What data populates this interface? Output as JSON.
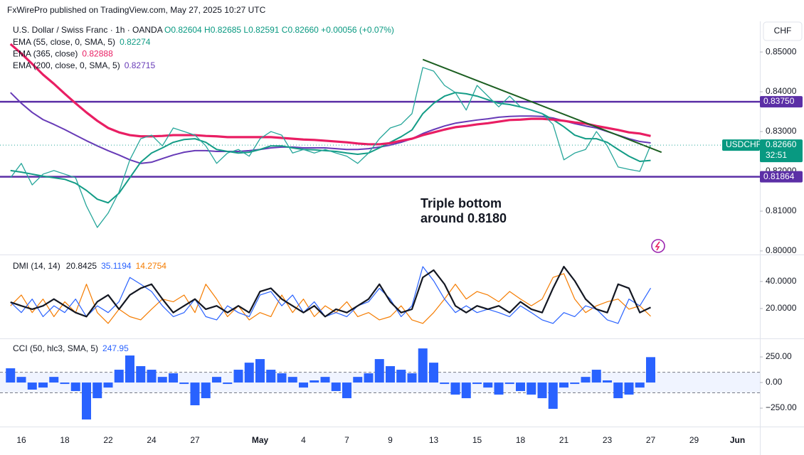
{
  "header": "FxWirePro published on TradingView.com, May 27, 2025 10:27 UTC",
  "currency_button": "CHF",
  "symbol": "U.S. Dollar / Swiss Franc · 1h · OANDA",
  "quote": "O0.82604 H0.82685 L0.82591 C0.82660 +0.00056 (+0.07%)",
  "last_price": {
    "symbol": "USDCHF",
    "price": "0.82660",
    "countdown": "32:51"
  },
  "annotation": [
    "Triple bottom",
    "around 0.8180"
  ],
  "chart_data": [
    {
      "type": "line",
      "categories": [
        null,
        "16",
        null,
        null,
        null,
        "18",
        null,
        null,
        null,
        "22",
        null,
        null,
        null,
        "24",
        null,
        null,
        null,
        "27",
        null,
        null,
        null,
        null,
        null,
        "May",
        null,
        null,
        null,
        "4",
        null,
        null,
        null,
        "7",
        null,
        null,
        null,
        "9",
        null,
        null,
        null,
        "13",
        null,
        null,
        null,
        "15",
        null,
        null,
        null,
        "18",
        null,
        null,
        null,
        "21",
        null,
        null,
        null,
        "23",
        null,
        null,
        null,
        "27",
        null,
        null,
        null,
        "29",
        null,
        null,
        null,
        "Jun"
      ],
      "ylim": [
        0.7991,
        0.8577
      ],
      "yticks": [
        {
          "value": 0.8,
          "label": "0.80000"
        },
        {
          "value": 0.81,
          "label": "0.81000"
        },
        {
          "value": 0.82,
          "label": "0.82000"
        },
        {
          "value": 0.83,
          "label": "0.83000"
        },
        {
          "value": 0.84,
          "label": "0.84000"
        },
        {
          "value": 0.85,
          "label": "0.85000"
        }
      ],
      "levels": [
        {
          "value": 0.8375,
          "label": "0.83750"
        },
        {
          "value": 0.81864,
          "label": "0.81864"
        }
      ],
      "level_color": "#5b2fa6",
      "trendline": {
        "x": [
          38,
          60
        ],
        "y": [
          0.8481,
          0.8248
        ],
        "color": "#1b5e20"
      },
      "series": [
        {
          "color": "#26a69a",
          "values": [
            0.8184,
            0.822,
            0.8166,
            0.8193,
            0.8202,
            0.8193,
            0.8184,
            0.8113,
            0.8059,
            0.8095,
            0.8148,
            0.8229,
            0.8282,
            0.8291,
            0.8264,
            0.8309,
            0.83,
            0.8291,
            0.8264,
            0.822,
            0.8246,
            0.8255,
            0.8238,
            0.8282,
            0.83,
            0.8291,
            0.8246,
            0.8255,
            0.8246,
            0.8255,
            0.8246,
            0.8238,
            0.822,
            0.8246,
            0.8282,
            0.8309,
            0.8318,
            0.8345,
            0.8461,
            0.8452,
            0.8416,
            0.8398,
            0.8354,
            0.8416,
            0.8389,
            0.8362,
            0.8389,
            0.8362,
            0.8354,
            0.8345,
            0.8318,
            0.8229,
            0.8246,
            0.8255,
            0.83,
            0.8264,
            0.8211,
            0.8205,
            0.82,
            0.8266,
            null,
            null,
            null,
            null,
            null,
            null,
            null,
            null
          ]
        },
        {
          "name": "EMA (55, close, 0, SMA, 5)",
          "color": "#139c86",
          "values": [
            0.8202,
            0.8198,
            0.8193,
            0.8188,
            0.8184,
            0.818,
            0.817,
            0.8152,
            0.813,
            0.8121,
            0.8145,
            0.8184,
            0.8223,
            0.8246,
            0.8259,
            0.8273,
            0.828,
            0.8282,
            0.8273,
            0.8255,
            0.825,
            0.8246,
            0.8248,
            0.8255,
            0.8264,
            0.8264,
            0.8259,
            0.8255,
            0.8254,
            0.8252,
            0.825,
            0.8246,
            0.8243,
            0.8246,
            0.8259,
            0.8273,
            0.8287,
            0.8304,
            0.8345,
            0.8371,
            0.8389,
            0.8398,
            0.8395,
            0.8389,
            0.838,
            0.8371,
            0.8368,
            0.8362,
            0.8354,
            0.8345,
            0.833,
            0.8312,
            0.8291,
            0.8282,
            0.8282,
            0.8273,
            0.8255,
            0.8238,
            0.8225,
            0.82274,
            null,
            null,
            null,
            null,
            null,
            null,
            null,
            null
          ]
        },
        {
          "name": "EMA (365, close)",
          "color": "#e91e63",
          "values": [
            0.852,
            0.8496,
            0.847,
            0.8443,
            0.842,
            0.8395,
            0.8371,
            0.8348,
            0.8327,
            0.8309,
            0.8298,
            0.8291,
            0.8288,
            0.8288,
            0.8289,
            0.8291,
            0.8291,
            0.8291,
            0.8289,
            0.8288,
            0.8286,
            0.8286,
            0.8286,
            0.8286,
            0.8286,
            0.8284,
            0.8282,
            0.828,
            0.8279,
            0.8277,
            0.8275,
            0.8273,
            0.827,
            0.8268,
            0.8268,
            0.8271,
            0.8277,
            0.8282,
            0.8291,
            0.8298,
            0.8305,
            0.8311,
            0.8314,
            0.8318,
            0.8321,
            0.8325,
            0.8329,
            0.833,
            0.8332,
            0.8332,
            0.833,
            0.8327,
            0.8323,
            0.832,
            0.8314,
            0.8309,
            0.8304,
            0.8298,
            0.8295,
            0.82888,
            null,
            null,
            null,
            null,
            null,
            null,
            null,
            null
          ]
        },
        {
          "name": "EMA (200, close, 0, SMA, 5)",
          "color": "#673ab7",
          "values": [
            0.8398,
            0.8371,
            0.8348,
            0.833,
            0.8318,
            0.8305,
            0.8291,
            0.8277,
            0.8264,
            0.8252,
            0.8241,
            0.8229,
            0.822,
            0.8223,
            0.8232,
            0.8241,
            0.8248,
            0.8252,
            0.8252,
            0.825,
            0.825,
            0.825,
            0.8252,
            0.8255,
            0.8259,
            0.8261,
            0.8261,
            0.8259,
            0.8259,
            0.8259,
            0.8257,
            0.8255,
            0.8255,
            0.8257,
            0.8261,
            0.8266,
            0.8273,
            0.8282,
            0.8295,
            0.8305,
            0.8314,
            0.8321,
            0.8325,
            0.8329,
            0.8332,
            0.8336,
            0.8338,
            0.8339,
            0.8339,
            0.8338,
            0.8334,
            0.8327,
            0.832,
            0.8314,
            0.8309,
            0.83,
            0.8291,
            0.8282,
            0.8275,
            0.82715,
            null,
            null,
            null,
            null,
            null,
            null,
            null,
            null
          ]
        }
      ]
    },
    {
      "type": "line",
      "title": "DMI (14, 14)",
      "ylim": [
        -2.1,
        58.9
      ],
      "yticks": [
        {
          "value": 20,
          "label": "20.0000"
        },
        {
          "value": 40,
          "label": "40.0000"
        }
      ],
      "series": [
        {
          "color": "#131722",
          "values": [
            24.7,
            22,
            19.5,
            22,
            27,
            22,
            17,
            14,
            25,
            30,
            19.5,
            30,
            35,
            38,
            27,
            17,
            22,
            27,
            19.5,
            22,
            17,
            22,
            17,
            32.6,
            35,
            27,
            22,
            17,
            22,
            14,
            19.5,
            17,
            22,
            27,
            38,
            25,
            17,
            19.5,
            43,
            48.4,
            38,
            22,
            17,
            22,
            19.5,
            22,
            17,
            25,
            19.5,
            17,
            35,
            51,
            40.5,
            27,
            19.5,
            17,
            38,
            35,
            17,
            20.8425,
            null,
            null,
            null,
            null,
            null,
            null,
            null,
            null
          ]
        },
        {
          "color": "#2962ff",
          "values": [
            24.7,
            17,
            27,
            14,
            22,
            17,
            27,
            14,
            22,
            17,
            25,
            43,
            38,
            32.6,
            22,
            14,
            17,
            27,
            14,
            11.6,
            22,
            17,
            14,
            30,
            32.6,
            22,
            30,
            17,
            25,
            14,
            17,
            14,
            22,
            25,
            35,
            27,
            14,
            22,
            51,
            40.5,
            27,
            17,
            22,
            17,
            19.5,
            17,
            14,
            22,
            17,
            11.6,
            9,
            17,
            14,
            22,
            19.5,
            11.6,
            9,
            27,
            22,
            35.1194,
            null,
            null,
            null,
            null,
            null,
            null,
            null,
            null
          ]
        },
        {
          "color": "#f57c00",
          "values": [
            22,
            30,
            17,
            27,
            14,
            25,
            17,
            38,
            17,
            9,
            19.5,
            14,
            11.6,
            19.5,
            27,
            25,
            30,
            17,
            38,
            27,
            14,
            22,
            11.6,
            17,
            14,
            30,
            17,
            27,
            14,
            22,
            17,
            25,
            14,
            17,
            11.6,
            14,
            22,
            11.6,
            9,
            17,
            27,
            38,
            27,
            32.6,
            30,
            25,
            32.6,
            27,
            22,
            27,
            43,
            45.8,
            27,
            17,
            22,
            25,
            27,
            19.5,
            22,
            14.2754,
            null,
            null,
            null,
            null,
            null,
            null,
            null,
            null
          ]
        }
      ]
    },
    {
      "type": "bar",
      "title": "CCI (50, hlc3, SMA, 5)",
      "color": "#2962ff",
      "ylim": [
        -430,
        417
      ],
      "yticks": [
        {
          "value": 250,
          "label": "250.00"
        },
        {
          "value": 0,
          "label": "0.00"
        },
        {
          "value": -250,
          "label": "−250.00"
        }
      ],
      "bands": [
        -100,
        100
      ],
      "values": [
        139,
        55,
        -69,
        -49,
        55,
        -14,
        -83,
        -361,
        -153,
        -49,
        125,
        264,
        160,
        125,
        55,
        90,
        -14,
        -222,
        -153,
        55,
        -14,
        125,
        194,
        229,
        125,
        90,
        55,
        -49,
        21,
        55,
        -83,
        -153,
        55,
        90,
        229,
        160,
        125,
        90,
        333,
        194,
        -14,
        -118,
        -153,
        -14,
        -49,
        -118,
        -14,
        -83,
        -118,
        -153,
        -257,
        -49,
        -14,
        55,
        125,
        21,
        -153,
        -118,
        -49,
        247.95,
        null,
        null,
        null,
        null,
        null,
        null,
        null,
        null
      ]
    }
  ]
}
